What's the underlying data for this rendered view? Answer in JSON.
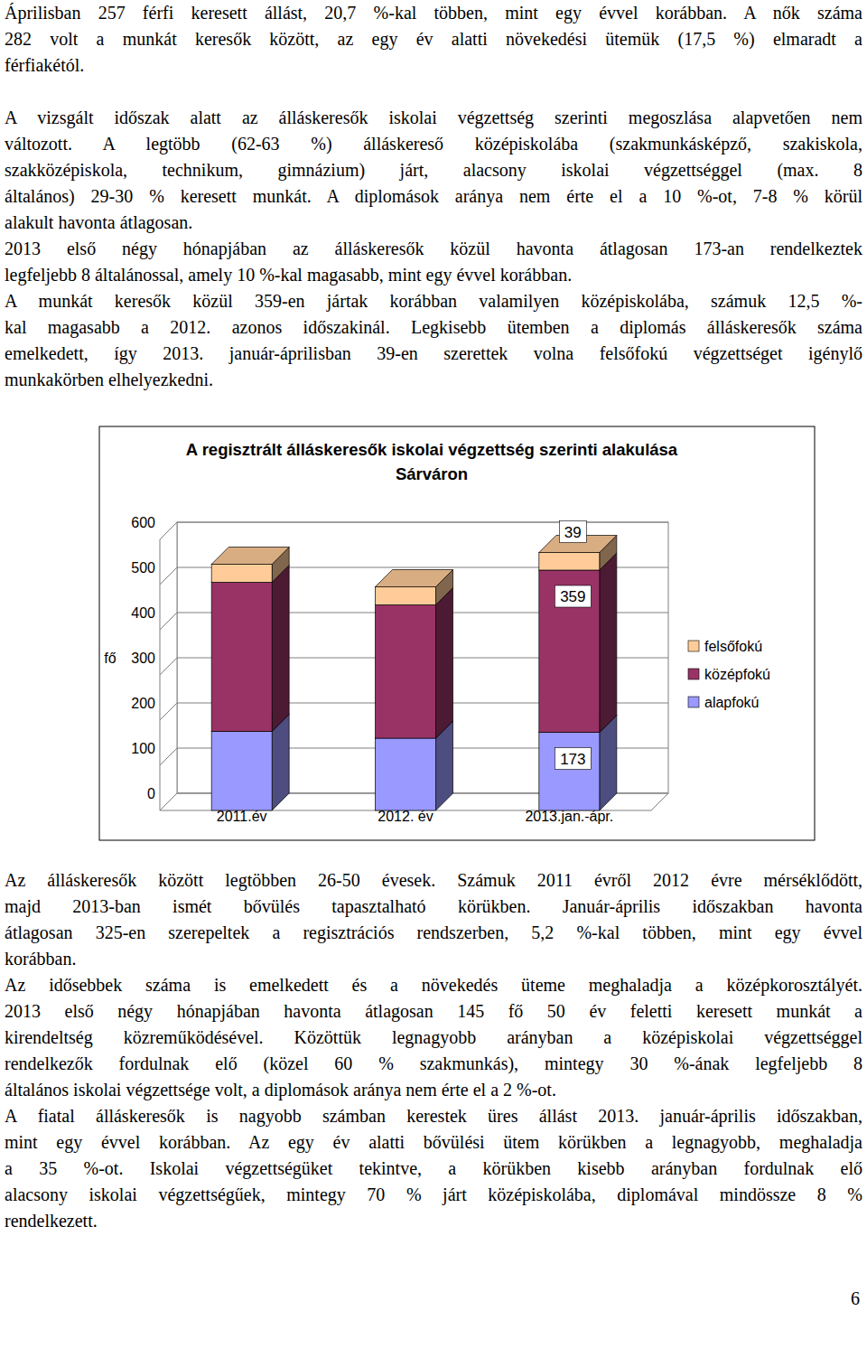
{
  "top_text": [
    [
      "Áprilisban 257 férfi keresett állást, 20,7 %-kal többen, mint egy évvel korábban. A nők száma",
      "282 volt a munkát keresők között, az egy év alatti növekedési ütemük (17,5 %) elmaradt a",
      "férfiakétól."
    ],
    [
      "A vizsgált időszak alatt az álláskeresők iskolai végzettség szerinti megoszlása alapvetően nem",
      "változott. A legtöbb (62-63 %) álláskereső középiskolába (szakmunkásképző, szakiskola,",
      "szakközépiskola, technikum, gimnázium) járt, alacsony iskolai végzettséggel (max. 8",
      "általános) 29-30 % keresett munkát. A diplomások aránya nem érte el a 10 %-ot, 7-8 % körül",
      "alakult havonta átlagosan."
    ],
    [
      "2013 első négy hónapjában az álláskeresők közül havonta átlagosan 173-an rendelkeztek",
      "legfeljebb 8 általánossal, amely 10 %-kal magasabb, mint egy évvel korábban."
    ],
    [
      "A munkát keresők közül 359-en jártak korábban valamilyen középiskolába, számuk 12,5 %-",
      "kal magasabb a 2012. azonos időszakinál. Legkisebb ütemben a diplomás álláskeresők száma",
      "emelkedett, így 2013. január-áprilisban 39-en szerettek volna felsőfokú végzettséget igénylő",
      "munkakörben elhelyezkedni."
    ]
  ],
  "chart_data": {
    "type": "bar",
    "title": "A regisztrált álláskeresők iskolai végzettség szerinti alakulása Sárváron",
    "y_label": "fő",
    "categories": [
      "2011.év",
      "2012. év",
      "2013.jan.-ápr."
    ],
    "series": [
      {
        "name": "alapfokú",
        "color": "#9999ff",
        "values": [
          175,
          160,
          173
        ],
        "value_labels": [
          null,
          null,
          "173"
        ]
      },
      {
        "name": "középfokú",
        "color": "#993366",
        "values": [
          330,
          295,
          359
        ],
        "value_labels": [
          null,
          null,
          "359"
        ]
      },
      {
        "name": "felsőfokú",
        "color": "#ffcc99",
        "values": [
          40,
          40,
          39
        ],
        "value_labels": [
          null,
          null,
          "39"
        ]
      }
    ],
    "ylim": [
      0,
      600
    ],
    "yticks": [
      0,
      100,
      200,
      300,
      400,
      500,
      600
    ],
    "grid": true,
    "stacked": true,
    "data_labels": true,
    "legend": "right"
  },
  "bottom_text": [
    [
      "Az álláskeresők között legtöbben 26-50 évesek. Számuk 2011 évről 2012 évre mérséklődött,",
      "majd 2013-ban ismét bővülés tapasztalható körükben. Január-április időszakban havonta",
      "átlagosan 325-en szerepeltek a regisztrációs rendszerben, 5,2 %-kal többen, mint egy évvel",
      "korábban."
    ],
    [
      "Az idősebbek száma is emelkedett és a növekedés üteme meghaladja a középkorosztályét.",
      "2013 első négy hónapjában havonta átlagosan 145 fő 50 év feletti keresett munkát a",
      "kirendeltség közreműködésével. Közöttük legnagyobb arányban a középiskolai végzettséggel",
      "rendelkezők fordulnak elő (közel 60 % szakmunkás), mintegy 30 %-ának legfeljebb 8",
      "általános iskolai végzettsége volt, a diplomások aránya nem érte el a 2 %-ot."
    ],
    [
      "A fiatal álláskeresők is nagyobb számban kerestek üres állást 2013. január-április időszakban,",
      "mint egy évvel korábban. Az egy év alatti bővülési ütem körükben a legnagyobb, meghaladja",
      "a 35 %-ot. Iskolai végzettségüket tekintve, a körükben kisebb arányban fordulnak elő",
      "alacsony iskolai végzettségűek, mintegy 70 % járt középiskolába, diplomával mindössze 8 %",
      "rendelkezett."
    ]
  ],
  "page_number": "6"
}
